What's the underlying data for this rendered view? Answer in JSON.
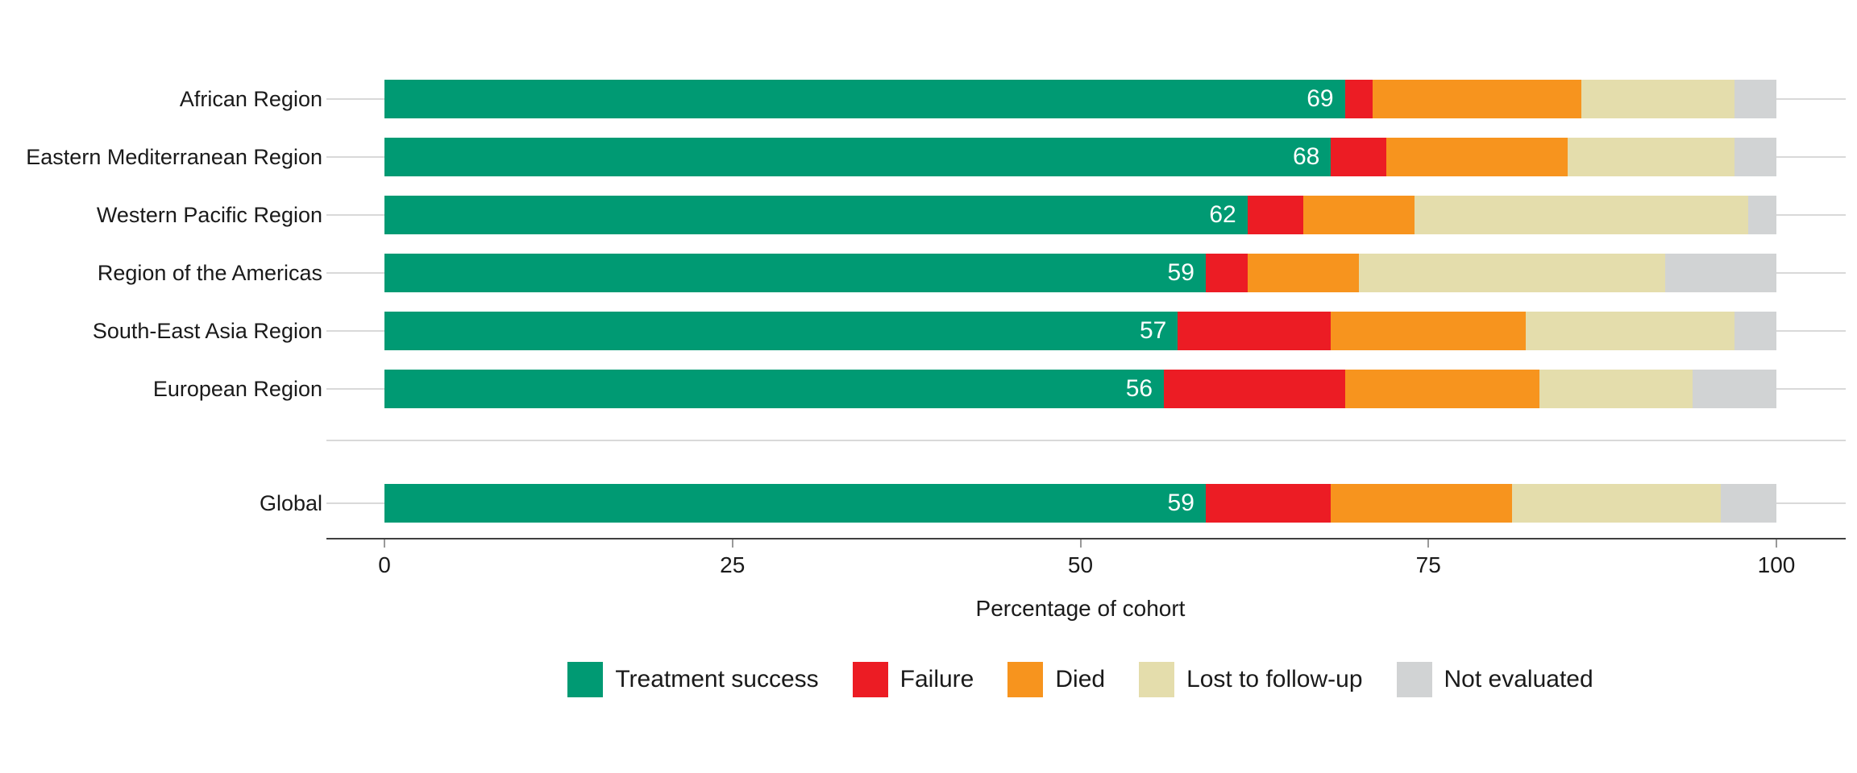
{
  "chart_data": {
    "type": "bar",
    "orientation": "horizontal",
    "stacked": true,
    "title": "",
    "xlabel": "Percentage of cohort",
    "ylabel": "",
    "xlim": [
      0,
      100
    ],
    "x_ticks": [
      0,
      25,
      50,
      75,
      100
    ],
    "grid": "category gridlines visible outside bars",
    "legend_position": "bottom",
    "series": [
      {
        "name": "Treatment success",
        "color": "#009A73"
      },
      {
        "name": "Failure",
        "color": "#EC1C24"
      },
      {
        "name": "Died",
        "color": "#F7941E"
      },
      {
        "name": "Lost to follow-up",
        "color": "#E4DDAC"
      },
      {
        "name": "Not evaluated",
        "color": "#D1D3D4"
      }
    ],
    "groups": [
      {
        "name": "regions",
        "rows": [
          {
            "label": "African Region",
            "values": [
              69,
              2,
              15,
              11,
              3
            ],
            "bar_label": "69"
          },
          {
            "label": "Eastern Mediterranean Region",
            "values": [
              68,
              4,
              13,
              12,
              3
            ],
            "bar_label": "68"
          },
          {
            "label": "Western Pacific Region",
            "values": [
              62,
              4,
              8,
              24,
              2
            ],
            "bar_label": "62"
          },
          {
            "label": "Region of the Americas",
            "values": [
              59,
              3,
              8,
              22,
              8
            ],
            "bar_label": "59"
          },
          {
            "label": "South-East Asia Region",
            "values": [
              57,
              11,
              14,
              15,
              3
            ],
            "bar_label": "57"
          },
          {
            "label": "European Region",
            "values": [
              56,
              13,
              14,
              11,
              6
            ],
            "bar_label": "56"
          }
        ]
      },
      {
        "name": "global",
        "rows": [
          {
            "label": "Global",
            "values": [
              59,
              9,
              13,
              15,
              4
            ],
            "bar_label": "59"
          }
        ]
      }
    ]
  },
  "legend": {
    "items": [
      {
        "label": "Treatment success",
        "color": "#009A73"
      },
      {
        "label": "Failure",
        "color": "#EC1C24"
      },
      {
        "label": "Died",
        "color": "#F7941E"
      },
      {
        "label": "Lost to follow-up",
        "color": "#E4DDAC"
      },
      {
        "label": "Not evaluated",
        "color": "#D1D3D4"
      }
    ]
  },
  "colors": {
    "treatment_success": "#009A73",
    "failure": "#EC1C24",
    "died": "#F7941E",
    "lost_to_follow_up": "#E4DDAC",
    "not_evaluated": "#D1D3D4",
    "gridline": "#D9D9D9",
    "separator_line": "#D9D9D9",
    "axis_line": "#404040",
    "tick_mark": "#999999",
    "text": "#1A1A1A",
    "bar_value_label": "#FFFFFF",
    "background": "#FFFFFF"
  }
}
